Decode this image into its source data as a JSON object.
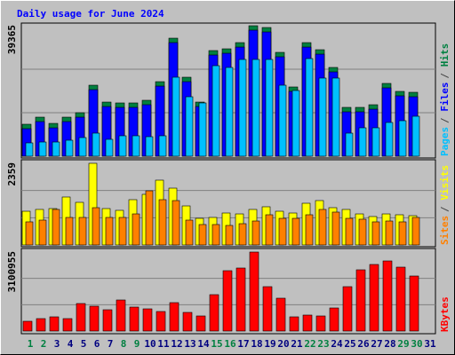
{
  "chart_data": [
    {
      "type": "bar",
      "title": "Daily usage for June 2024",
      "ylim": [
        0,
        39365
      ],
      "yticks": [
        39365
      ],
      "legend_separator": "/",
      "series": [
        {
          "name": "Hits",
          "color": "#008040",
          "values": [
            9640,
            11780,
            9900,
            11780,
            13120,
            21420,
            16330,
            16070,
            16070,
            16870,
            22490,
            35610,
            23830,
            16330,
            31870,
            32400,
            34270,
            39365,
            38830,
            31330,
            20890,
            34270,
            32130,
            26780,
            14730,
            14730,
            15530,
            21960,
            19550,
            19280,
            null
          ]
        },
        {
          "name": "Files",
          "color": "#0000ff",
          "values": [
            8300,
            10440,
            8560,
            10440,
            11780,
            20080,
            14990,
            14730,
            14730,
            15530,
            21150,
            34270,
            22490,
            14990,
            30530,
            31060,
            32930,
            38030,
            37490,
            29990,
            19550,
            32930,
            30790,
            25440,
            13390,
            13390,
            14190,
            20620,
            18210,
            17940,
            null
          ]
        },
        {
          "name": "Pages",
          "color": "#00c0ff",
          "values": [
            4020,
            4280,
            4280,
            4820,
            5620,
            6960,
            5090,
            6160,
            6160,
            5890,
            6160,
            23830,
            17940,
            16070,
            27310,
            26780,
            29190,
            29190,
            29190,
            21420,
            19820,
            29460,
            23570,
            23570,
            6960,
            8570,
            8570,
            10180,
            10710,
            12050,
            null
          ]
        }
      ]
    },
    {
      "type": "bar",
      "ylim": [
        0,
        2359
      ],
      "yticks": [
        2359
      ],
      "legend_separator": "/",
      "series": [
        {
          "name": "Visits",
          "color": "#ffff00",
          "values": [
            974,
            1026,
            1051,
            1385,
            1231,
            2359,
            1051,
            1000,
            1308,
            1462,
            1872,
            1641,
            1128,
            769,
            795,
            923,
            897,
            1026,
            1103,
            974,
            923,
            1205,
            1282,
            1077,
            1026,
            897,
            821,
            897,
            872,
            846,
            null
          ]
        },
        {
          "name": "Sites",
          "color": "#ff8000",
          "values": [
            667,
            718,
            1026,
            795,
            795,
            1077,
            795,
            795,
            897,
            1564,
            1308,
            1282,
            718,
            590,
            590,
            564,
            615,
            692,
            872,
            769,
            769,
            872,
            1026,
            949,
            769,
            744,
            667,
            692,
            667,
            795,
            null
          ]
        }
      ]
    },
    {
      "type": "bar",
      "ylim": [
        0,
        3100955
      ],
      "yticks": [
        3100955
      ],
      "categories": [
        "1",
        "2",
        "3",
        "4",
        "5",
        "6",
        "7",
        "8",
        "9",
        "10",
        "11",
        "12",
        "13",
        "14",
        "15",
        "16",
        "17",
        "18",
        "19",
        "20",
        "21",
        "22",
        "23",
        "24",
        "25",
        "26",
        "27",
        "28",
        "29",
        "30",
        "31"
      ],
      "category_colors": [
        "#008040",
        "#008040",
        "#000080",
        "#000080",
        "#000080",
        "#000080",
        "#000080",
        "#008040",
        "#008040",
        "#000080",
        "#000080",
        "#000080",
        "#000080",
        "#000080",
        "#008040",
        "#008040",
        "#000080",
        "#000080",
        "#000080",
        "#000080",
        "#000080",
        "#008040",
        "#008040",
        "#000080",
        "#000080",
        "#000080",
        "#000080",
        "#000080",
        "#008040",
        "#008040",
        "#000080"
      ],
      "series": [
        {
          "name": "KBytes",
          "color": "#ff0000",
          "values": [
            383260,
            487790,
            557480,
            487790,
            1080130,
            975560,
            836210,
            1219500,
            940740,
            871050,
            766530,
            1114930,
            731680,
            592320,
            1428530,
            2369260,
            2473790,
            3100955,
            1742110,
            1289160,
            557480,
            627160,
            592320,
            905890,
            1742110,
            2404110,
            2613160,
            2752470,
            2508630,
            2160220,
            null
          ]
        }
      ]
    }
  ]
}
